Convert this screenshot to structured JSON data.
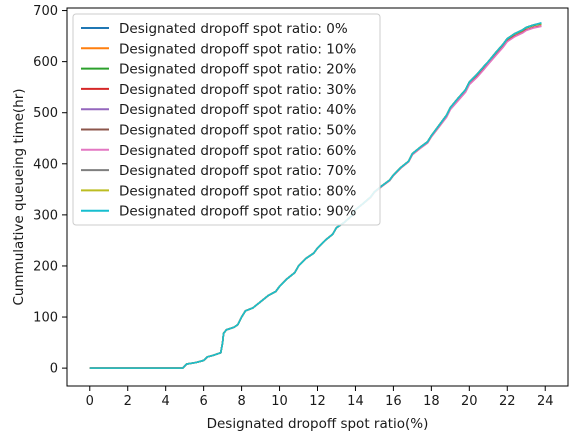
{
  "chart_data": {
    "type": "line",
    "title": "",
    "xlabel": "Designated dropoff spot ratio(%)",
    "ylabel": "Cummulative queueing time(hr)",
    "xlim": [
      -1.2,
      25.2
    ],
    "ylim": [
      -35,
      705
    ],
    "xticks": [
      0,
      2,
      4,
      6,
      8,
      10,
      12,
      14,
      16,
      18,
      20,
      22,
      24
    ],
    "yticks": [
      0,
      100,
      200,
      300,
      400,
      500,
      600,
      700
    ],
    "grid": false,
    "legend_position": "upper-left",
    "x": [
      0,
      1,
      2,
      3,
      4,
      4.9,
      5.1,
      5.6,
      6.0,
      6.2,
      6.5,
      6.9,
      7.0,
      7.05,
      7.2,
      7.6,
      7.8,
      8.0,
      8.2,
      8.6,
      9.0,
      9.4,
      9.8,
      10.0,
      10.4,
      10.8,
      11.0,
      11.4,
      11.8,
      12.0,
      12.4,
      12.8,
      13.0,
      13.4,
      13.8,
      14.0,
      14.4,
      14.8,
      15.0,
      15.4,
      15.8,
      16.0,
      16.4,
      16.8,
      17.0,
      17.4,
      17.8,
      18.0,
      18.4,
      18.8,
      19.0,
      19.4,
      19.8,
      20.0,
      20.4,
      20.8,
      21.0,
      21.4,
      21.8,
      22.0,
      22.4,
      22.8,
      23.0,
      23.4,
      23.8
    ],
    "series": [
      {
        "name": "Designated dropoff spot ratio: 0%",
        "color": "#1f77b4",
        "values": [
          0,
          0,
          0,
          0,
          0,
          0,
          8,
          11,
          15,
          22,
          25,
          30,
          50,
          68,
          75,
          80,
          85,
          100,
          112,
          118,
          130,
          142,
          150,
          160,
          175,
          187,
          200,
          215,
          225,
          235,
          250,
          262,
          275,
          285,
          298,
          310,
          322,
          335,
          345,
          357,
          368,
          378,
          393,
          405,
          420,
          432,
          443,
          455,
          475,
          495,
          510,
          528,
          545,
          560,
          575,
          592,
          600,
          618,
          635,
          645,
          655,
          662,
          667,
          672,
          675
        ]
      },
      {
        "name": "Designated dropoff spot ratio: 10%",
        "color": "#ff7f0e",
        "values": [
          0,
          0,
          0,
          0,
          0,
          0,
          8,
          11,
          15,
          22,
          25,
          30,
          50,
          68,
          75,
          80,
          85,
          100,
          112,
          118,
          130,
          142,
          150,
          160,
          175,
          187,
          200,
          215,
          225,
          235,
          250,
          262,
          275,
          285,
          298,
          310,
          322,
          335,
          345,
          357,
          368,
          378,
          393,
          405,
          420,
          432,
          443,
          455,
          475,
          495,
          510,
          528,
          545,
          559,
          574,
          591,
          599,
          617,
          634,
          644,
          654,
          661,
          666,
          671,
          674
        ]
      },
      {
        "name": "Designated dropoff spot ratio: 20%",
        "color": "#2ca02c",
        "values": [
          0,
          0,
          0,
          0,
          0,
          0,
          8,
          11,
          15,
          22,
          25,
          30,
          50,
          68,
          75,
          80,
          85,
          100,
          112,
          118,
          130,
          142,
          150,
          160,
          175,
          187,
          200,
          215,
          225,
          235,
          250,
          262,
          275,
          285,
          298,
          310,
          322,
          335,
          345,
          357,
          368,
          378,
          393,
          405,
          420,
          432,
          443,
          455,
          475,
          495,
          510,
          528,
          544,
          559,
          574,
          591,
          599,
          617,
          634,
          644,
          654,
          661,
          666,
          671,
          674
        ]
      },
      {
        "name": "Designated dropoff spot ratio: 30%",
        "color": "#d62728",
        "values": [
          0,
          0,
          0,
          0,
          0,
          0,
          8,
          11,
          15,
          22,
          25,
          30,
          50,
          68,
          75,
          80,
          85,
          100,
          112,
          118,
          130,
          142,
          150,
          160,
          175,
          187,
          200,
          215,
          225,
          235,
          250,
          262,
          275,
          285,
          298,
          310,
          322,
          334,
          344,
          356,
          367,
          377,
          392,
          404,
          418,
          430,
          441,
          453,
          472,
          492,
          507,
          524,
          541,
          556,
          570,
          587,
          596,
          613,
          630,
          640,
          650,
          657,
          662,
          667,
          670
        ]
      },
      {
        "name": "Designated dropoff spot ratio: 40%",
        "color": "#9467bd",
        "values": [
          0,
          0,
          0,
          0,
          0,
          0,
          8,
          11,
          15,
          22,
          25,
          30,
          50,
          68,
          75,
          80,
          85,
          100,
          112,
          118,
          130,
          142,
          150,
          160,
          175,
          187,
          200,
          215,
          225,
          235,
          250,
          262,
          275,
          285,
          298,
          310,
          322,
          335,
          345,
          357,
          368,
          378,
          393,
          405,
          420,
          432,
          443,
          455,
          475,
          495,
          510,
          528,
          545,
          560,
          575,
          592,
          600,
          618,
          635,
          645,
          655,
          662,
          667,
          672,
          675
        ]
      },
      {
        "name": "Designated dropoff spot ratio: 50%",
        "color": "#8c564b",
        "values": [
          0,
          0,
          0,
          0,
          0,
          0,
          8,
          11,
          15,
          22,
          25,
          30,
          50,
          68,
          75,
          80,
          85,
          100,
          112,
          118,
          130,
          142,
          150,
          160,
          175,
          187,
          200,
          215,
          225,
          235,
          250,
          262,
          275,
          285,
          298,
          310,
          322,
          335,
          345,
          357,
          368,
          378,
          393,
          405,
          420,
          432,
          443,
          455,
          475,
          495,
          510,
          528,
          545,
          560,
          575,
          592,
          600,
          618,
          635,
          645,
          655,
          662,
          667,
          672,
          675
        ]
      },
      {
        "name": "Designated dropoff spot ratio: 60%",
        "color": "#e377c2",
        "values": [
          0,
          0,
          0,
          0,
          0,
          0,
          8,
          11,
          15,
          22,
          25,
          30,
          50,
          68,
          75,
          80,
          85,
          100,
          112,
          118,
          130,
          142,
          150,
          160,
          175,
          187,
          200,
          215,
          225,
          235,
          250,
          262,
          275,
          285,
          298,
          310,
          322,
          334,
          344,
          356,
          367,
          377,
          392,
          404,
          418,
          430,
          441,
          453,
          472,
          491,
          506,
          523,
          540,
          555,
          569,
          586,
          595,
          612,
          629,
          639,
          649,
          656,
          661,
          666,
          669
        ]
      },
      {
        "name": "Designated dropoff spot ratio: 70%",
        "color": "#7f7f7f",
        "values": [
          0,
          0,
          0,
          0,
          0,
          0,
          8,
          11,
          15,
          22,
          25,
          30,
          50,
          68,
          75,
          80,
          85,
          100,
          112,
          118,
          130,
          142,
          150,
          160,
          175,
          187,
          200,
          215,
          225,
          235,
          250,
          262,
          275,
          285,
          298,
          310,
          322,
          335,
          345,
          357,
          368,
          378,
          393,
          405,
          420,
          432,
          443,
          455,
          475,
          495,
          510,
          528,
          545,
          560,
          575,
          592,
          600,
          618,
          635,
          645,
          655,
          662,
          667,
          672,
          675
        ]
      },
      {
        "name": "Designated dropoff spot ratio: 80%",
        "color": "#bcbd22",
        "values": [
          0,
          0,
          0,
          0,
          0,
          0,
          8,
          11,
          15,
          22,
          25,
          30,
          50,
          68,
          75,
          80,
          85,
          100,
          112,
          118,
          130,
          142,
          150,
          160,
          175,
          187,
          200,
          215,
          225,
          235,
          250,
          262,
          275,
          285,
          298,
          310,
          322,
          335,
          345,
          357,
          368,
          378,
          393,
          405,
          420,
          432,
          443,
          455,
          475,
          495,
          510,
          528,
          545,
          560,
          575,
          592,
          600,
          618,
          635,
          645,
          655,
          662,
          667,
          672,
          675
        ]
      },
      {
        "name": "Designated dropoff spot ratio: 90%",
        "color": "#17becf",
        "values": [
          0,
          0,
          0,
          0,
          0,
          0,
          8,
          11,
          15,
          22,
          25,
          30,
          50,
          68,
          75,
          80,
          85,
          100,
          112,
          118,
          130,
          142,
          150,
          160,
          175,
          187,
          200,
          215,
          225,
          235,
          250,
          262,
          275,
          285,
          298,
          310,
          322,
          335,
          345,
          357,
          368,
          378,
          393,
          405,
          420,
          432,
          443,
          455,
          475,
          495,
          510,
          528,
          545,
          560,
          575,
          592,
          600,
          618,
          635,
          645,
          655,
          662,
          667,
          672,
          676
        ]
      }
    ]
  }
}
